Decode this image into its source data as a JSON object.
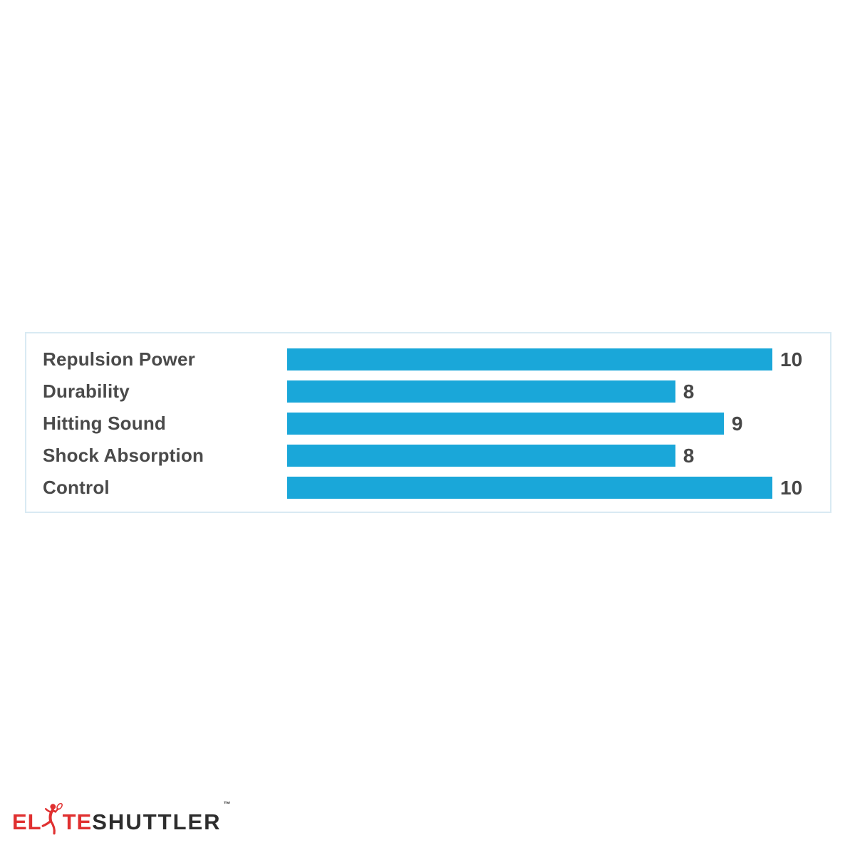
{
  "chart_data": {
    "type": "bar",
    "orientation": "horizontal",
    "title": "",
    "xlabel": "",
    "ylabel": "",
    "categories": [
      "Repulsion Power",
      "Durability",
      "Hitting Sound",
      "Shock Absorption",
      "Control"
    ],
    "values": [
      10,
      8,
      9,
      8,
      10
    ],
    "xlim": [
      0,
      10
    ],
    "grid": false,
    "legend": false,
    "value_labels_shown": true,
    "bar_color": "#1aa7d9",
    "category_label_color": "#4a4a4a",
    "value_label_color": "#474747"
  },
  "panel": {
    "border_color": "#d9eaf3",
    "background": "#ffffff"
  },
  "logo": {
    "part1": "EL",
    "part2": "TE",
    "part3": "SHUTTLER",
    "trademark": "™",
    "red": "#e03030",
    "dark": "#2d2d2d",
    "icon": "badminton-player-icon"
  }
}
